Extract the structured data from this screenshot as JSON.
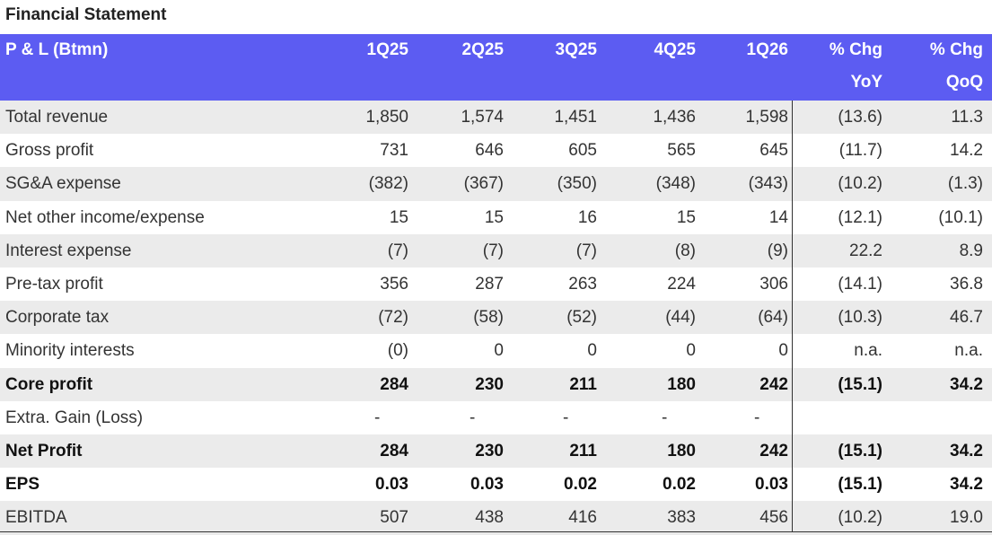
{
  "title": "Financial Statement",
  "table": {
    "header": [
      [
        "P & L (Btmn)"
      ],
      [
        "1Q25"
      ],
      [
        "2Q25"
      ],
      [
        "3Q25"
      ],
      [
        "4Q25"
      ],
      [
        "1Q26"
      ],
      [
        "% Chg",
        "YoY"
      ],
      [
        "% Chg",
        "QoQ"
      ]
    ],
    "rows": [
      [
        "Total revenue",
        "1,850",
        "1,574",
        "1,451",
        "1,436",
        "1,598",
        "(13.6)",
        "11.3"
      ],
      [
        "Gross profit",
        "731",
        "646",
        "605",
        "565",
        "645",
        "(11.7)",
        "14.2"
      ],
      [
        "SG&A expense",
        "(382)",
        "(367)",
        "(350)",
        "(348)",
        "(343)",
        "(10.2)",
        "(1.3)"
      ],
      [
        "Net other income/expense",
        "15",
        "15",
        "16",
        "15",
        "14",
        "(12.1)",
        "(10.1)"
      ],
      [
        "Interest expense",
        "(7)",
        "(7)",
        "(7)",
        "(8)",
        "(9)",
        "22.2",
        "8.9"
      ],
      [
        "Pre-tax profit",
        "356",
        "287",
        "263",
        "224",
        "306",
        "(14.1)",
        "36.8"
      ],
      [
        "Corporate tax",
        "(72)",
        "(58)",
        "(52)",
        "(44)",
        "(64)",
        "(10.3)",
        "46.7"
      ],
      [
        "Minority interests",
        "(0)",
        "0",
        "0",
        "0",
        "0",
        "n.a.",
        "n.a."
      ],
      [
        "Core profit",
        "284",
        "230",
        "211",
        "180",
        "242",
        "(15.1)",
        "34.2"
      ],
      [
        "Extra. Gain (Loss)",
        "-",
        "-",
        "-",
        "-",
        "-"
      ],
      [
        "Net Profit",
        "284",
        "230",
        "211",
        "180",
        "242",
        "(15.1)",
        "34.2"
      ],
      [
        "EPS",
        "0.03",
        "0.03",
        "0.02",
        "0.02",
        "0.03",
        "(15.1)",
        "34.2"
      ],
      [
        "EBITDA",
        "507",
        "438",
        "416",
        "383",
        "456",
        "(10.2)",
        "19.0"
      ]
    ],
    "bold_rows": [
      8,
      10,
      11
    ]
  }
}
